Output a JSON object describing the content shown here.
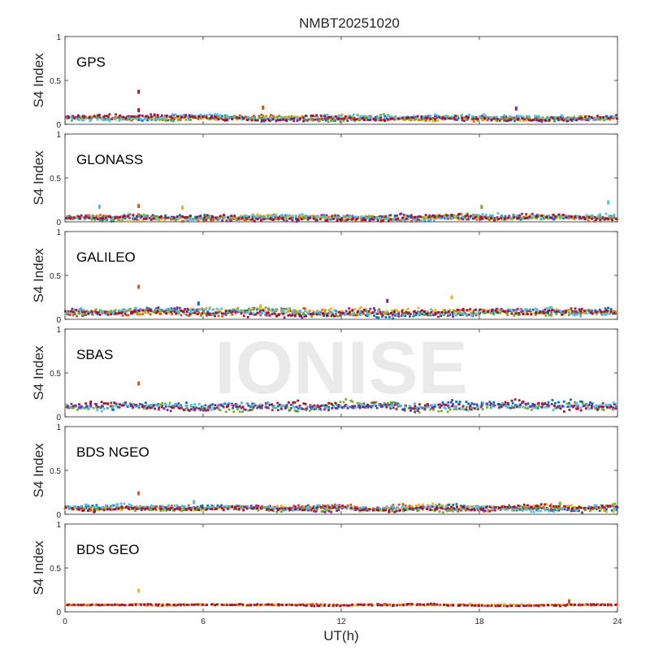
{
  "figure_title": "NMBT20251020",
  "watermark": "IONISE",
  "colors": {
    "blue": "#0072bd",
    "orange": "#d95319",
    "yellow": "#edb120",
    "purple": "#7e2f8e",
    "green": "#77ac30",
    "cyan": "#4dbeee",
    "maroon": "#a2142f"
  },
  "chart_data": [
    {
      "type": "scatter",
      "panel_label": "GPS",
      "ylabel": "S4 Index",
      "xlabel": "",
      "xlim": [
        0,
        24
      ],
      "ylim": [
        0,
        1
      ],
      "yticks": [
        "0",
        "0.5",
        "1"
      ],
      "xticks": [
        "0",
        "6",
        "12",
        "18",
        "24"
      ],
      "baseline": 0.07,
      "spread": 0.03,
      "series_colors": [
        "blue",
        "orange",
        "yellow",
        "purple",
        "green",
        "cyan",
        "maroon"
      ],
      "spikes": [
        {
          "x": 3.2,
          "y": 0.37,
          "color": "maroon"
        },
        {
          "x": 3.2,
          "y": 0.16,
          "color": "maroon"
        },
        {
          "x": 8.6,
          "y": 0.19,
          "color": "orange"
        },
        {
          "x": 19.6,
          "y": 0.18,
          "color": "purple"
        }
      ]
    },
    {
      "type": "scatter",
      "panel_label": "GLONASS",
      "ylabel": "S4 Index",
      "xlabel": "",
      "xlim": [
        0,
        24
      ],
      "ylim": [
        0,
        1
      ],
      "yticks": [
        "0",
        "0.5",
        "1"
      ],
      "xticks": [
        "0",
        "6",
        "12",
        "18",
        "24"
      ],
      "baseline": 0.05,
      "spread": 0.03,
      "series_colors": [
        "blue",
        "orange",
        "yellow",
        "purple",
        "green",
        "cyan",
        "maroon"
      ],
      "spikes": [
        {
          "x": 1.5,
          "y": 0.17,
          "color": "cyan"
        },
        {
          "x": 3.2,
          "y": 0.18,
          "color": "orange"
        },
        {
          "x": 5.1,
          "y": 0.16,
          "color": "yellow"
        },
        {
          "x": 18.1,
          "y": 0.17,
          "color": "green"
        },
        {
          "x": 23.6,
          "y": 0.22,
          "color": "cyan"
        }
      ]
    },
    {
      "type": "scatter",
      "panel_label": "GALILEO",
      "ylabel": "S4 Index",
      "xlabel": "",
      "xlim": [
        0,
        24
      ],
      "ylim": [
        0,
        1
      ],
      "yticks": [
        "0",
        "0.5",
        "1"
      ],
      "xticks": [
        "0",
        "6",
        "12",
        "18",
        "24"
      ],
      "baseline": 0.08,
      "spread": 0.04,
      "series_colors": [
        "blue",
        "orange",
        "yellow",
        "purple",
        "green",
        "cyan",
        "maroon"
      ],
      "spikes": [
        {
          "x": 3.2,
          "y": 0.37,
          "color": "orange"
        },
        {
          "x": 5.8,
          "y": 0.18,
          "color": "blue"
        },
        {
          "x": 14.0,
          "y": 0.21,
          "color": "purple"
        },
        {
          "x": 16.8,
          "y": 0.25,
          "color": "yellow"
        },
        {
          "x": 8.5,
          "y": 0.15,
          "color": "yellow"
        }
      ]
    },
    {
      "type": "scatter",
      "panel_label": "SBAS",
      "ylabel": "S4 Index",
      "xlabel": "",
      "xlim": [
        0,
        24
      ],
      "ylim": [
        0,
        1
      ],
      "yticks": [
        "0",
        "0.5",
        "1"
      ],
      "xticks": [
        "0",
        "6",
        "12",
        "18",
        "24"
      ],
      "baseline": 0.12,
      "spread": 0.05,
      "series_colors": [
        "blue",
        "green",
        "maroon",
        "cyan",
        "purple"
      ],
      "spikes": [
        {
          "x": 3.2,
          "y": 0.38,
          "color": "orange"
        }
      ]
    },
    {
      "type": "scatter",
      "panel_label": "BDS NGEO",
      "ylabel": "S4 Index",
      "xlabel": "",
      "xlim": [
        0,
        24
      ],
      "ylim": [
        0,
        1
      ],
      "yticks": [
        "0",
        "0.5",
        "1"
      ],
      "xticks": [
        "0",
        "6",
        "12",
        "18",
        "24"
      ],
      "baseline": 0.07,
      "spread": 0.03,
      "series_colors": [
        "blue",
        "orange",
        "yellow",
        "purple",
        "green",
        "cyan",
        "maroon"
      ],
      "spikes": [
        {
          "x": 3.2,
          "y": 0.24,
          "color": "orange"
        },
        {
          "x": 5.6,
          "y": 0.14,
          "color": "cyan"
        },
        {
          "x": 21.5,
          "y": 0.12,
          "color": "green"
        }
      ]
    },
    {
      "type": "scatter",
      "panel_label": "BDS GEO",
      "ylabel": "S4 Index",
      "xlabel": "UT(h)",
      "xlim": [
        0,
        24
      ],
      "ylim": [
        0,
        1
      ],
      "yticks": [
        "0",
        "0.5",
        "1"
      ],
      "xticks": [
        "0",
        "6",
        "12",
        "18",
        "24"
      ],
      "baseline": 0.08,
      "spread": 0.01,
      "series_colors": [
        "yellow",
        "orange",
        "maroon"
      ],
      "spikes": [
        {
          "x": 3.2,
          "y": 0.24,
          "color": "yellow"
        },
        {
          "x": 21.9,
          "y": 0.12,
          "color": "orange"
        }
      ]
    }
  ]
}
